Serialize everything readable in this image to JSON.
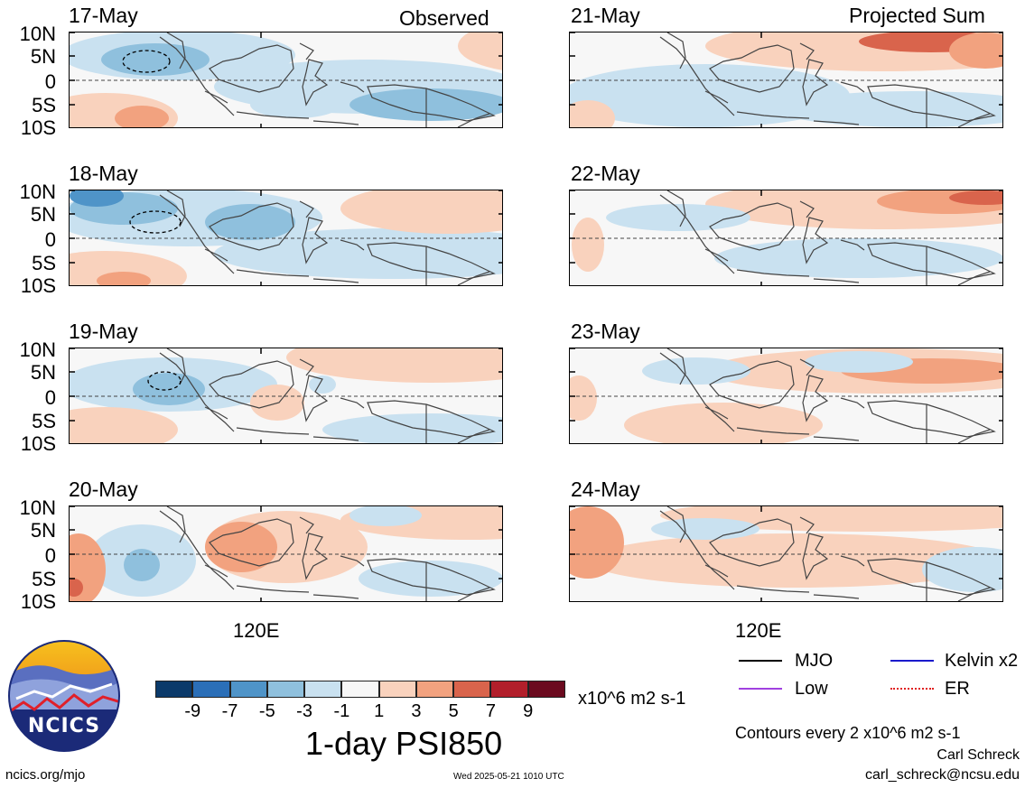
{
  "headers": {
    "observed": "Observed",
    "projected": "Projected Sum"
  },
  "lat_labels": [
    "10N",
    "5N",
    "0",
    "5S",
    "10S"
  ],
  "lon_label": "120E",
  "panels": {
    "observed": [
      {
        "date": "17-May"
      },
      {
        "date": "18-May"
      },
      {
        "date": "19-May"
      },
      {
        "date": "20-May"
      }
    ],
    "projected": [
      {
        "date": "21-May"
      },
      {
        "date": "22-May"
      },
      {
        "date": "23-May"
      },
      {
        "date": "24-May"
      }
    ]
  },
  "colorbar": {
    "title": "1-day PSI850",
    "units": "x10^6 m2 s-1",
    "ticks": [
      "-9",
      "-7",
      "-5",
      "-3",
      "-1",
      "1",
      "3",
      "5",
      "7",
      "9"
    ],
    "colors": [
      "#0b3a6a",
      "#2b6fb8",
      "#4f94c8",
      "#8fc0dd",
      "#c9e1f0",
      "#f7f7f7",
      "#f9d2bd",
      "#f2a27f",
      "#d9644c",
      "#b21f2b",
      "#6b0a1f"
    ]
  },
  "legend": [
    {
      "label": "MJO",
      "color": "#000000"
    },
    {
      "label": "Kelvin x2",
      "color": "#1a1acc"
    },
    {
      "label": "Low",
      "color": "#a040e0"
    },
    {
      "label": "ER",
      "color": "#e02020"
    }
  ],
  "contour_note": "Contours every 2 x10^6 m2 s-1",
  "credits": {
    "name": "Carl Schreck",
    "email": "carl_schreck@ncsu.edu"
  },
  "logo_text": "NCICS",
  "footer": {
    "url": "ncics.org/mjo",
    "timestamp": "Wed 2025-05-21 1010 UTC"
  }
}
